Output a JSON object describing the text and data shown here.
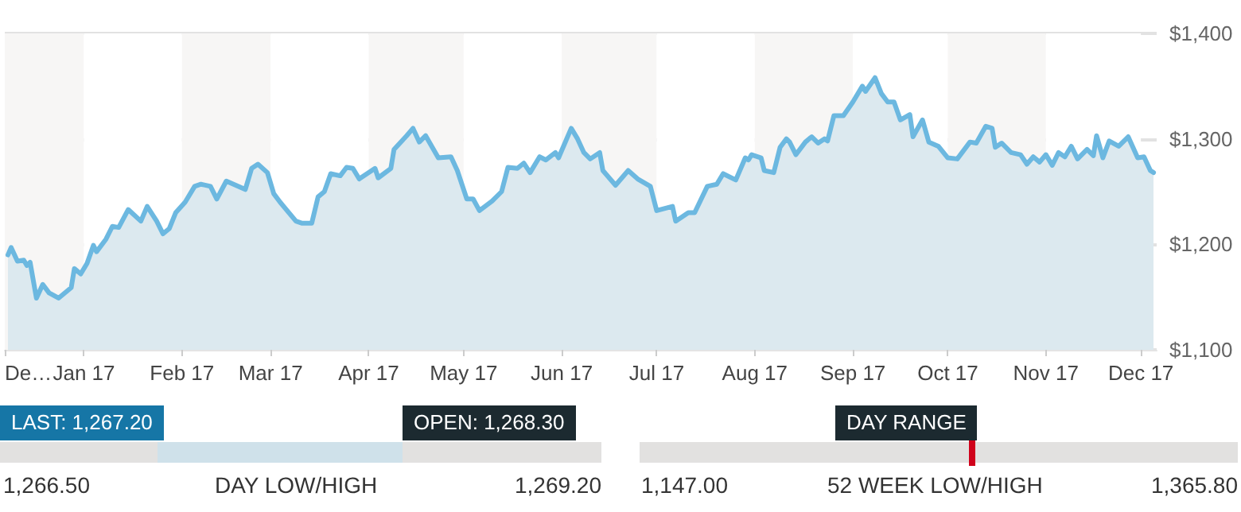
{
  "chart_data": [
    {
      "type": "area",
      "x": [
        "2016-12-08",
        "2016-12-09",
        "2016-12-11",
        "2016-12-13",
        "2016-12-14",
        "2016-12-15",
        "2016-12-17",
        "2016-12-19",
        "2016-12-21",
        "2016-12-24",
        "2016-12-28",
        "2016-12-29",
        "2016-12-31",
        "2017-01-02",
        "2017-01-04",
        "2017-01-05",
        "2017-01-08",
        "2017-01-10",
        "2017-01-12",
        "2017-01-15",
        "2017-01-19",
        "2017-01-21",
        "2017-01-24",
        "2017-01-26",
        "2017-01-28",
        "2017-01-30",
        "2017-02-02",
        "2017-02-05",
        "2017-02-07",
        "2017-02-10",
        "2017-02-12",
        "2017-02-15",
        "2017-02-21",
        "2017-02-23",
        "2017-02-25",
        "2017-02-28",
        "2017-03-02",
        "2017-03-04",
        "2017-03-09",
        "2017-03-11",
        "2017-03-14",
        "2017-03-16",
        "2017-03-18",
        "2017-03-20",
        "2017-03-23",
        "2017-03-25",
        "2017-03-27",
        "2017-03-29",
        "2017-04-03",
        "2017-04-04",
        "2017-04-08",
        "2017-04-09",
        "2017-04-13",
        "2017-04-15",
        "2017-04-17",
        "2017-04-19",
        "2017-04-23",
        "2017-04-27",
        "2017-04-29",
        "2017-05-02",
        "2017-05-04",
        "2017-05-06",
        "2017-05-10",
        "2017-05-13",
        "2017-05-15",
        "2017-05-18",
        "2017-05-20",
        "2017-05-22",
        "2017-05-25",
        "2017-05-27",
        "2017-05-30",
        "2017-05-31",
        "2017-06-04",
        "2017-06-06",
        "2017-06-08",
        "2017-06-10",
        "2017-06-13",
        "2017-06-14",
        "2017-06-18",
        "2017-06-22",
        "2017-06-25",
        "2017-06-29",
        "2017-07-01",
        "2017-07-06",
        "2017-07-07",
        "2017-07-11",
        "2017-07-13",
        "2017-07-17",
        "2017-07-20",
        "2017-07-22",
        "2017-07-26",
        "2017-07-29",
        "2017-07-30",
        "2017-07-31",
        "2017-08-03",
        "2017-08-04",
        "2017-08-07",
        "2017-08-09",
        "2017-08-11",
        "2017-08-12",
        "2017-08-14",
        "2017-08-17",
        "2017-08-19",
        "2017-08-21",
        "2017-08-23",
        "2017-08-24",
        "2017-08-26",
        "2017-08-29",
        "2017-09-01",
        "2017-09-04",
        "2017-09-05",
        "2017-09-08",
        "2017-09-10",
        "2017-09-12",
        "2017-09-14",
        "2017-09-16",
        "2017-09-19",
        "2017-09-20",
        "2017-09-23",
        "2017-09-25",
        "2017-09-28",
        "2017-10-01",
        "2017-10-04",
        "2017-10-08",
        "2017-10-10",
        "2017-10-13",
        "2017-10-15",
        "2017-10-16",
        "2017-10-18",
        "2017-10-21",
        "2017-10-24",
        "2017-10-26",
        "2017-10-28",
        "2017-10-30",
        "2017-11-01",
        "2017-11-03",
        "2017-11-05",
        "2017-11-07",
        "2017-11-09",
        "2017-11-11",
        "2017-11-14",
        "2017-11-16",
        "2017-11-17",
        "2017-11-19",
        "2017-11-21",
        "2017-11-24",
        "2017-11-27",
        "2017-11-30",
        "2017-12-02",
        "2017-12-04",
        "2017-12-05"
      ],
      "series": [
        {
          "color": "#6cb8e0",
          "values": [
            1190,
            1197,
            1184,
            1185,
            1180,
            1183,
            1149,
            1162,
            1154,
            1149,
            1159,
            1177,
            1172,
            1182,
            1199,
            1193,
            1205,
            1217,
            1216,
            1233,
            1222,
            1236,
            1222,
            1210,
            1215,
            1230,
            1240,
            1255,
            1257,
            1255,
            1243,
            1260,
            1252,
            1272,
            1276,
            1268,
            1248,
            1240,
            1222,
            1220,
            1220,
            1245,
            1250,
            1267,
            1265,
            1273,
            1272,
            1262,
            1272,
            1263,
            1272,
            1290,
            1303,
            1310,
            1297,
            1303,
            1282,
            1283,
            1270,
            1243,
            1243,
            1232,
            1241,
            1250,
            1273,
            1272,
            1277,
            1268,
            1283,
            1280,
            1287,
            1282,
            1310,
            1300,
            1287,
            1281,
            1287,
            1270,
            1256,
            1270,
            1262,
            1255,
            1232,
            1236,
            1222,
            1230,
            1230,
            1255,
            1257,
            1267,
            1261,
            1282,
            1280,
            1285,
            1282,
            1270,
            1268,
            1292,
            1300,
            1297,
            1285,
            1297,
            1302,
            1296,
            1300,
            1298,
            1322,
            1322,
            1335,
            1350,
            1345,
            1358,
            1343,
            1335,
            1335,
            1318,
            1323,
            1302,
            1318,
            1297,
            1293,
            1282,
            1281,
            1297,
            1296,
            1312,
            1310,
            1292,
            1296,
            1287,
            1285,
            1276,
            1283,
            1278,
            1285,
            1275,
            1287,
            1283,
            1293,
            1281,
            1290,
            1284,
            1303,
            1282,
            1298,
            1293,
            1302,
            1282,
            1283,
            1270,
            1268
          ]
        }
      ],
      "xlim": [
        "2016-12-07",
        "2017-12-06"
      ],
      "xticks": [
        {
          "value": "2016-12-07",
          "label": "De…"
        },
        {
          "value": "2017-01-01",
          "label": "Jan 17"
        },
        {
          "value": "2017-02-01",
          "label": "Feb 17"
        },
        {
          "value": "2017-03-01",
          "label": "Mar 17"
        },
        {
          "value": "2017-04-01",
          "label": "Apr 17"
        },
        {
          "value": "2017-05-01",
          "label": "May 17"
        },
        {
          "value": "2017-06-01",
          "label": "Jun 17"
        },
        {
          "value": "2017-07-01",
          "label": "Jul 17"
        },
        {
          "value": "2017-08-01",
          "label": "Aug 17"
        },
        {
          "value": "2017-09-01",
          "label": "Sep 17"
        },
        {
          "value": "2017-10-01",
          "label": "Oct 17"
        },
        {
          "value": "2017-11-01",
          "label": "Nov 17"
        },
        {
          "value": "2017-12-01",
          "label": "Dec 17"
        }
      ],
      "ylim": [
        1100,
        1400
      ],
      "yticks": [
        {
          "value": 1100,
          "label": "$1,100"
        },
        {
          "value": 1200,
          "label": "$1,200"
        },
        {
          "value": 1300,
          "label": "$1,300"
        },
        {
          "value": 1400,
          "label": "$1,400"
        }
      ],
      "grid": "y",
      "marker": "none",
      "line_style": "solid"
    },
    {
      "type": "other",
      "annotations": [
        "LAST: 1,267.20",
        "OPEN: 1,268.30",
        "1,266.50",
        "DAY LOW/HIGH",
        "1,269.20",
        "DAY RANGE",
        "1,147.00",
        "52 WEEK LOW/HIGH",
        "1,365.80"
      ]
    }
  ]
}
